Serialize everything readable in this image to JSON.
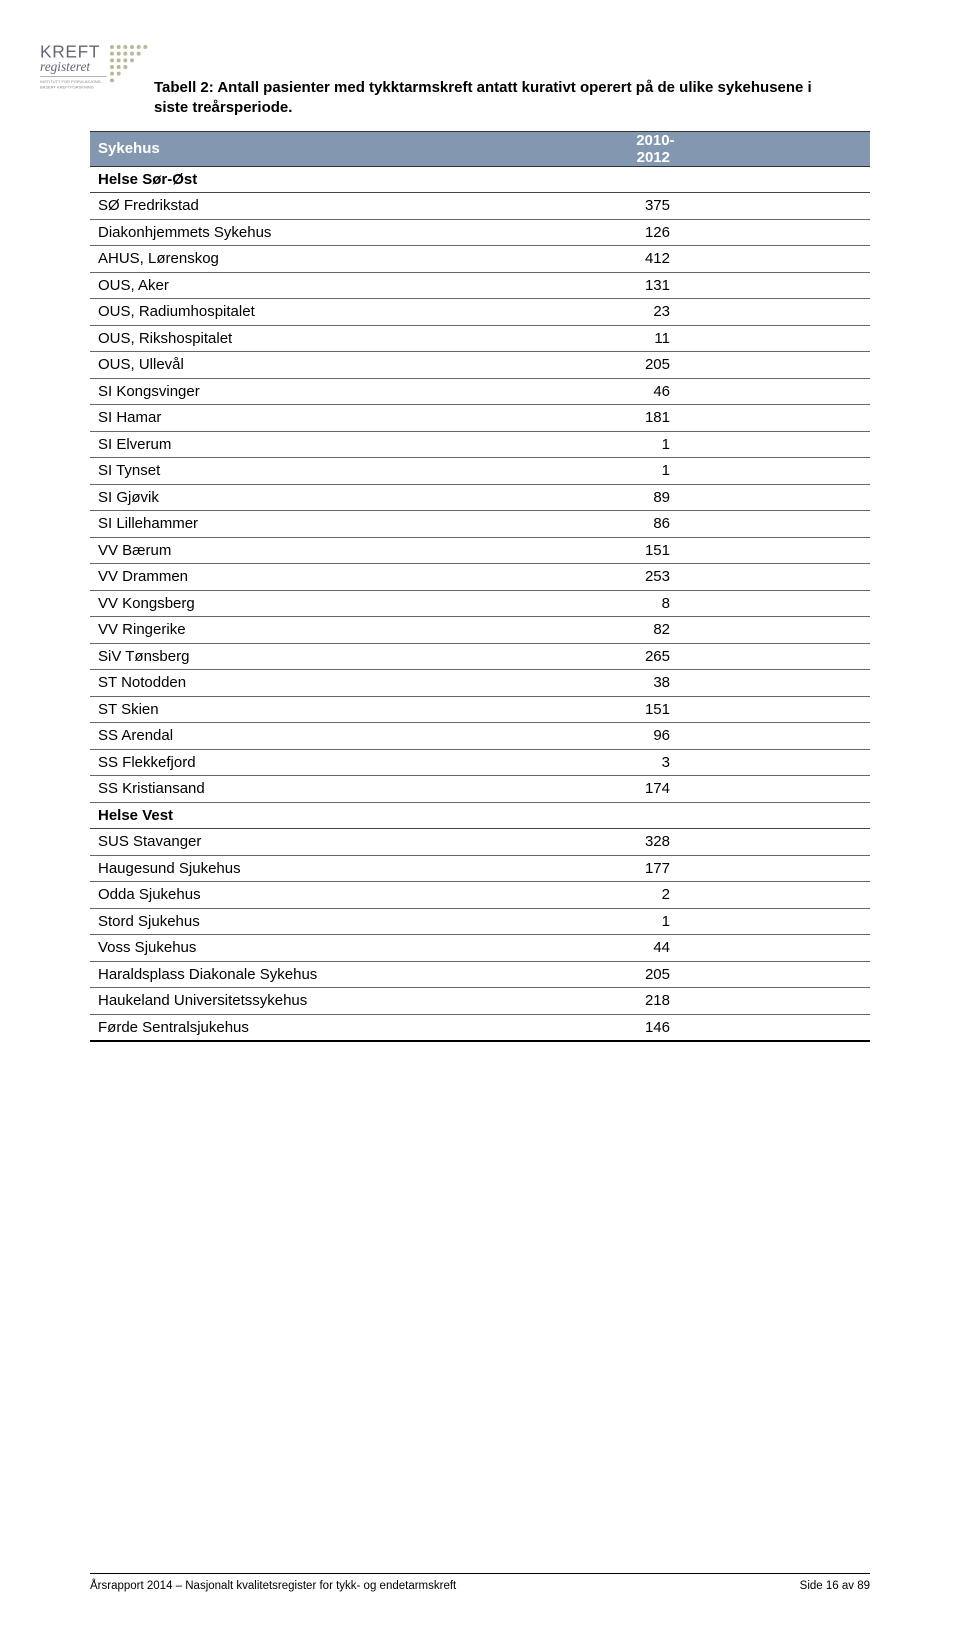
{
  "caption": {
    "line1": "Tabell 2: Antall pasienter med tykktarmskreft antatt kurativt operert på de ulike sykehusene i",
    "line2": "siste treårsperiode."
  },
  "table": {
    "header": {
      "col1": "Sykehus",
      "col2": "2010-2012"
    },
    "sections": [
      {
        "title": "Helse Sør-Øst",
        "rows": [
          {
            "name": "SØ Fredrikstad",
            "value": "375"
          },
          {
            "name": "Diakonhjemmets Sykehus",
            "value": "126"
          },
          {
            "name": "AHUS, Lørenskog",
            "value": "412"
          },
          {
            "name": "OUS, Aker",
            "value": "131"
          },
          {
            "name": "OUS, Radiumhospitalet",
            "value": "23"
          },
          {
            "name": "OUS, Rikshospitalet",
            "value": "11"
          },
          {
            "name": "OUS, Ullevål",
            "value": "205"
          },
          {
            "name": "SI Kongsvinger",
            "value": "46"
          },
          {
            "name": "SI Hamar",
            "value": "181"
          },
          {
            "name": "SI Elverum",
            "value": "1"
          },
          {
            "name": "SI Tynset",
            "value": "1"
          },
          {
            "name": "SI Gjøvik",
            "value": "89"
          },
          {
            "name": "SI Lillehammer",
            "value": "86"
          },
          {
            "name": "VV Bærum",
            "value": "151"
          },
          {
            "name": "VV Drammen",
            "value": "253"
          },
          {
            "name": "VV Kongsberg",
            "value": "8"
          },
          {
            "name": "VV Ringerike",
            "value": "82"
          },
          {
            "name": "SiV Tønsberg",
            "value": "265"
          },
          {
            "name": "ST Notodden",
            "value": "38"
          },
          {
            "name": "ST Skien",
            "value": "151"
          },
          {
            "name": "SS Arendal",
            "value": "96"
          },
          {
            "name": "SS Flekkefjord",
            "value": "3"
          },
          {
            "name": "SS Kristiansand",
            "value": "174"
          }
        ]
      },
      {
        "title": "Helse Vest",
        "rows": [
          {
            "name": "SUS Stavanger",
            "value": "328"
          },
          {
            "name": "Haugesund Sjukehus",
            "value": "177"
          },
          {
            "name": "Odda Sjukehus",
            "value": "2"
          },
          {
            "name": "Stord Sjukehus",
            "value": "1"
          },
          {
            "name": "Voss Sjukehus",
            "value": "44"
          },
          {
            "name": "Haraldsplass Diakonale Sykehus",
            "value": "205"
          },
          {
            "name": "Haukeland Universitetssykehus",
            "value": "218"
          },
          {
            "name": "Førde Sentralsjukehus",
            "value": "146"
          }
        ]
      }
    ]
  },
  "footer": {
    "left": "Årsrapport 2014 – Nasjonalt kvalitetsregister for tykk- og endetarmskreft",
    "right": "Side 16 av 89"
  },
  "logo": {
    "word1": "KREFT",
    "word2": "registeret",
    "sub1": "INSTITUTT FOR POPULASJONS-",
    "sub2": "BASERT KREFTFORSKNING"
  }
}
